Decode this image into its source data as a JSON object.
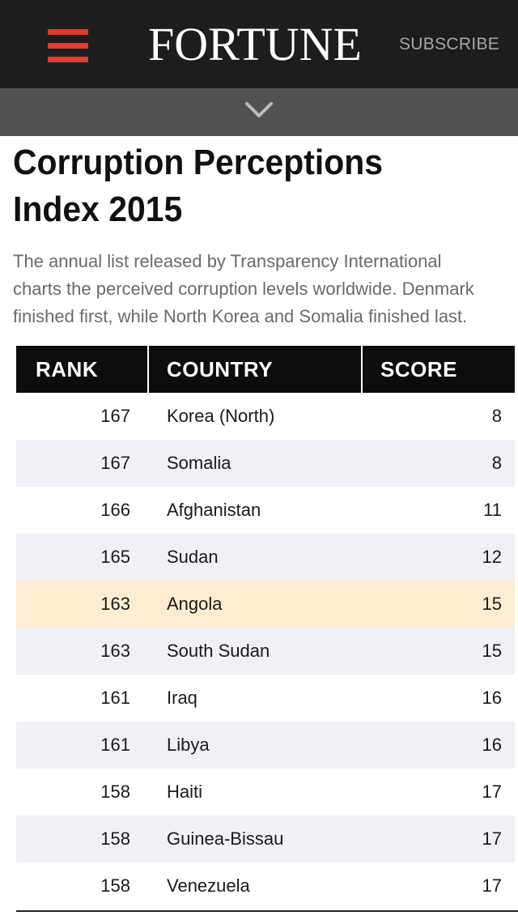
{
  "header": {
    "logo": "FORTUNE",
    "subscribe_label": "SUBSCRIBE",
    "menu_icon": "hamburger-icon",
    "expand_icon": "chevron-down-icon",
    "accent_color": "#e23a2b"
  },
  "article": {
    "title": "Corruption Perceptions Index 2015",
    "dek_lines": [
      "The annual list released by Transparency International",
      "charts the perceived corruption levels worldwide. Denmark",
      "finished first, while North Korea and Somalia finished last."
    ]
  },
  "table": {
    "headers": {
      "rank": "RANK",
      "country": "COUNTRY",
      "score": "SCORE"
    },
    "highlight_color": "#fdecd0",
    "rows": [
      {
        "rank": "167",
        "country": "Korea (North)",
        "score": "8"
      },
      {
        "rank": "167",
        "country": "Somalia",
        "score": "8"
      },
      {
        "rank": "166",
        "country": "Afghanistan",
        "score": "11"
      },
      {
        "rank": "165",
        "country": "Sudan",
        "score": "12"
      },
      {
        "rank": "163",
        "country": "Angola",
        "score": "15"
      },
      {
        "rank": "163",
        "country": "South Sudan",
        "score": "15"
      },
      {
        "rank": "161",
        "country": "Iraq",
        "score": "16"
      },
      {
        "rank": "161",
        "country": "Libya",
        "score": "16"
      },
      {
        "rank": "158",
        "country": "Haiti",
        "score": "17"
      },
      {
        "rank": "158",
        "country": "Guinea-Bissau",
        "score": "17"
      },
      {
        "rank": "158",
        "country": "Venezuela",
        "score": "17"
      }
    ]
  }
}
